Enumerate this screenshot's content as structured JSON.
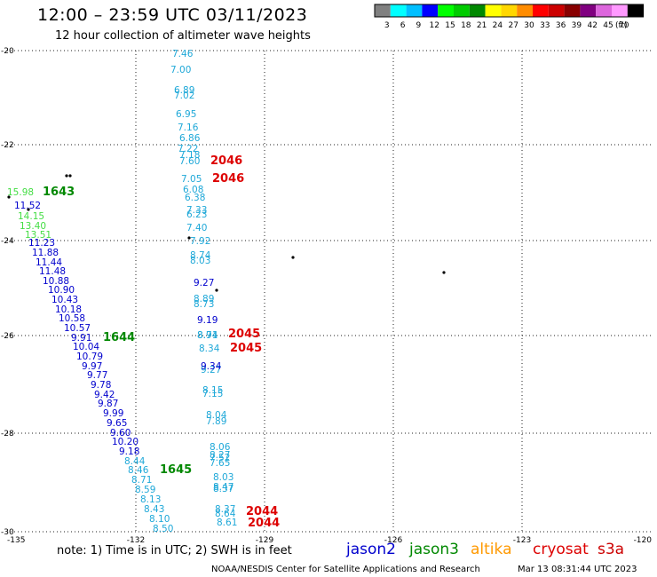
{
  "header": {
    "title": "12:00 – 23:59 UTC 03/11/2023",
    "subtitle": "12 hour collection of altimeter wave heights"
  },
  "colorbar": {
    "labels": [
      "3",
      "6",
      "9",
      "12",
      "15",
      "18",
      "21",
      "24",
      "27",
      "30",
      "33",
      "36",
      "39",
      "42",
      "45",
      "70",
      "(ft)"
    ],
    "colors": [
      "#808080",
      "#00ffff",
      "#00bfff",
      "#0000ff",
      "#00ff00",
      "#00cc00",
      "#008800",
      "#ffff00",
      "#ffd700",
      "#ff8c00",
      "#ff0000",
      "#cc0000",
      "#880000",
      "#800080",
      "#dd66dd",
      "#ff99ff",
      "#000000"
    ]
  },
  "map": {
    "lon_ticks": [
      "-135",
      "-132",
      "-129",
      "-126",
      "-123",
      "-120"
    ],
    "lat_ticks": [
      "-20",
      "-22",
      "-24",
      "-26",
      "-28",
      "-30"
    ]
  },
  "colors": {
    "blue": "#0000cd",
    "cyan": "#1fa8d8",
    "lightgreen": "#44dd44",
    "green": "#008800",
    "red": "#dd0000",
    "orange": "#ff9900",
    "grid": "#222222"
  },
  "tracks": {
    "cyan_track": [
      [
        "7.46",
        194,
        60
      ],
      [
        "7.00",
        192,
        78
      ],
      [
        "6.89",
        196,
        101
      ],
      [
        "7.02",
        196,
        107
      ],
      [
        "6.95",
        198,
        128
      ],
      [
        "7.16",
        200,
        143
      ],
      [
        "6.86",
        202,
        155
      ],
      [
        "7.22",
        200,
        167
      ],
      [
        "7.18",
        202,
        174
      ],
      [
        "7.60",
        202,
        181
      ],
      [
        "7.05",
        204,
        201
      ],
      [
        "6.08",
        206,
        213
      ],
      [
        "6.38",
        208,
        222
      ],
      [
        "7.33",
        210,
        236
      ],
      [
        "6.23",
        210,
        241
      ],
      [
        "7.40",
        210,
        256
      ],
      [
        "7.92",
        214,
        271
      ],
      [
        "8.74",
        214,
        287
      ],
      [
        "8.03",
        214,
        293
      ],
      [
        "8.89",
        218,
        336
      ],
      [
        "8.73",
        218,
        342
      ],
      [
        "8.94",
        222,
        377
      ],
      [
        "8.71",
        222,
        377
      ],
      [
        "8.34",
        224,
        392
      ],
      [
        "9.27",
        226,
        416
      ],
      [
        "8.15",
        228,
        439
      ],
      [
        "7.15",
        228,
        443
      ],
      [
        "8.04",
        232,
        467
      ],
      [
        "7.89",
        232,
        474
      ],
      [
        "8.06",
        236,
        503
      ],
      [
        "8.27",
        236,
        512
      ],
      [
        "7.52",
        236,
        515
      ],
      [
        "7.65",
        236,
        521
      ],
      [
        "8.03",
        240,
        537
      ],
      [
        "8.47",
        240,
        548
      ],
      [
        "8.37",
        240,
        550
      ],
      [
        "8.37",
        242,
        573
      ],
      [
        "8.64",
        242,
        578
      ],
      [
        "8.61",
        244,
        588
      ]
    ],
    "blue_track_b": [
      [
        "9.27",
        218,
        318
      ],
      [
        "9.19",
        222,
        360
      ],
      [
        "9.34",
        226,
        412
      ]
    ],
    "blue_track": [
      [
        "11.52",
        16,
        231
      ],
      [
        "11.23",
        32,
        273
      ],
      [
        "11.88",
        36,
        284
      ],
      [
        "11.44",
        40,
        295
      ],
      [
        "11.48",
        44,
        305
      ],
      [
        "10.88",
        48,
        316
      ],
      [
        "10.90",
        54,
        326
      ],
      [
        "10.43",
        58,
        337
      ],
      [
        "10.18",
        62,
        348
      ],
      [
        "10.58",
        66,
        358
      ],
      [
        "10.57",
        72,
        369
      ],
      [
        "9.91",
        80,
        380
      ],
      [
        "10.04",
        82,
        390
      ],
      [
        "10.79",
        86,
        401
      ],
      [
        "9.97",
        92,
        412
      ],
      [
        "9.77",
        98,
        422
      ],
      [
        "9.78",
        102,
        433
      ],
      [
        "9.42",
        106,
        444
      ],
      [
        "9.87",
        110,
        454
      ],
      [
        "9.99",
        116,
        465
      ],
      [
        "9.65",
        120,
        476
      ],
      [
        "9.60",
        124,
        487
      ],
      [
        "10.20",
        126,
        497
      ],
      [
        "9.18",
        134,
        508
      ]
    ],
    "cyan_track_b": [
      [
        "8.44",
        140,
        519
      ],
      [
        "8.46",
        144,
        529
      ],
      [
        "8.71",
        148,
        540
      ],
      [
        "8.59",
        152,
        551
      ],
      [
        "8.13",
        158,
        562
      ],
      [
        "8.43",
        162,
        573
      ],
      [
        "8.10",
        168,
        584
      ],
      [
        "8.50",
        172,
        595
      ]
    ],
    "lightgreen_track": [
      [
        "15.98",
        8,
        216
      ],
      [
        "14.15",
        20,
        243
      ],
      [
        "13.40",
        22,
        254
      ],
      [
        "13.51",
        28,
        264
      ]
    ],
    "time_labels_green": [
      [
        "1643",
        48,
        216
      ],
      [
        "1644",
        116,
        380
      ],
      [
        "1645",
        180,
        529
      ]
    ],
    "time_labels_red": [
      [
        "2046",
        237,
        181
      ],
      [
        "2046",
        239,
        201
      ],
      [
        "2045",
        257,
        376
      ],
      [
        "2045",
        259,
        392
      ],
      [
        "2044",
        277,
        576
      ],
      [
        "2044",
        279,
        589
      ]
    ]
  },
  "islands": [
    [
      75,
      198
    ],
    [
      79,
      198
    ],
    [
      32,
      236
    ],
    [
      213,
      268
    ],
    [
      244,
      327
    ],
    [
      330,
      290
    ],
    [
      500,
      307
    ],
    [
      10,
      222
    ]
  ],
  "note": "note:  1) Time is in UTC;  2) SWH is in feet",
  "satellites": [
    {
      "name": "jason2",
      "color": "#0000cd"
    },
    {
      "name": "jason3",
      "color": "#008800"
    },
    {
      "name": "altika",
      "color": "#ff9900"
    },
    {
      "name": "cryosat",
      "color": "#dd0000"
    },
    {
      "name": "s3a",
      "color": "#cc0000"
    }
  ],
  "footer": {
    "center": "NOAA/NESDIS Center for Satellite Applications and Research",
    "timestamp": "Mar 13 08:31:44 UTC 2023"
  }
}
